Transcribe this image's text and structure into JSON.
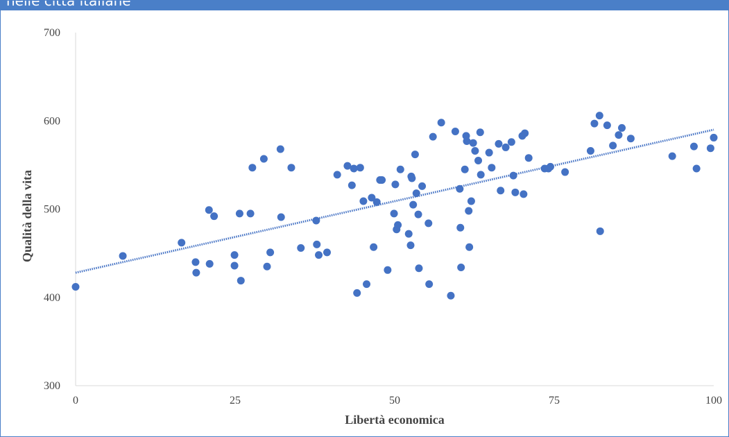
{
  "header": {
    "title": "nelle città italiane"
  },
  "chart_data": {
    "type": "scatter",
    "title": "",
    "xlabel": "Libertà economica",
    "ylabel": "Qualità della vita",
    "xlim": [
      0,
      100
    ],
    "ylim": [
      300,
      700
    ],
    "x_ticks": [
      "0",
      "25",
      "50",
      "75",
      "100"
    ],
    "y_ticks": [
      "300",
      "400",
      "500",
      "600",
      "700"
    ],
    "grid": false,
    "legend": "none",
    "marker_color": "#4472c4",
    "trendline": {
      "style": "dotted",
      "color": "#4472c4",
      "x": [
        0,
        100
      ],
      "y": [
        428,
        590
      ]
    },
    "series": [
      {
        "points": [
          [
            0,
            412
          ],
          [
            7.4,
            447
          ],
          [
            16.6,
            462
          ],
          [
            18.8,
            440
          ],
          [
            18.9,
            428
          ],
          [
            20.9,
            499
          ],
          [
            21,
            438
          ],
          [
            21.7,
            492
          ],
          [
            24.9,
            436
          ],
          [
            24.9,
            448
          ],
          [
            25.7,
            495
          ],
          [
            25.9,
            419
          ],
          [
            27.4,
            495
          ],
          [
            27.7,
            547
          ],
          [
            29.5,
            557
          ],
          [
            30,
            435
          ],
          [
            30.5,
            451
          ],
          [
            32.1,
            568
          ],
          [
            32.2,
            491
          ],
          [
            33.8,
            547
          ],
          [
            35.3,
            456
          ],
          [
            37.7,
            487
          ],
          [
            37.8,
            460
          ],
          [
            38.1,
            448
          ],
          [
            39.4,
            451
          ],
          [
            41,
            539
          ],
          [
            42.6,
            549
          ],
          [
            43.3,
            527
          ],
          [
            43.6,
            546
          ],
          [
            44.1,
            405
          ],
          [
            44.6,
            547
          ],
          [
            45.1,
            509
          ],
          [
            45.6,
            415
          ],
          [
            46.4,
            513
          ],
          [
            46.7,
            457
          ],
          [
            47.2,
            508
          ],
          [
            47.7,
            533
          ],
          [
            48,
            533
          ],
          [
            48.9,
            431
          ],
          [
            49.9,
            495
          ],
          [
            50.1,
            528
          ],
          [
            50.3,
            477
          ],
          [
            50.5,
            482
          ],
          [
            50.9,
            545
          ],
          [
            52.2,
            472
          ],
          [
            52.5,
            459
          ],
          [
            52.6,
            537
          ],
          [
            52.7,
            535
          ],
          [
            52.9,
            505
          ],
          [
            53.2,
            562
          ],
          [
            53.4,
            518
          ],
          [
            53.7,
            494
          ],
          [
            53.8,
            433
          ],
          [
            54.3,
            526
          ],
          [
            55.3,
            484
          ],
          [
            55.4,
            415
          ],
          [
            56,
            582
          ],
          [
            57.3,
            598
          ],
          [
            58.8,
            402
          ],
          [
            59.5,
            588
          ],
          [
            60.2,
            523
          ],
          [
            60.3,
            479
          ],
          [
            60.4,
            434
          ],
          [
            61,
            545
          ],
          [
            61.2,
            583
          ],
          [
            61.3,
            577
          ],
          [
            61.6,
            498
          ],
          [
            61.7,
            457
          ],
          [
            62,
            509
          ],
          [
            62.3,
            575
          ],
          [
            62.6,
            566
          ],
          [
            63.1,
            555
          ],
          [
            63.4,
            587
          ],
          [
            63.5,
            539
          ],
          [
            64.8,
            564
          ],
          [
            65.2,
            547
          ],
          [
            66.3,
            574
          ],
          [
            66.6,
            521
          ],
          [
            67.4,
            570
          ],
          [
            68.3,
            576
          ],
          [
            68.6,
            538
          ],
          [
            68.9,
            519
          ],
          [
            70,
            583
          ],
          [
            70.2,
            517
          ],
          [
            70.4,
            586
          ],
          [
            71,
            558
          ],
          [
            73.5,
            546
          ],
          [
            74.1,
            546
          ],
          [
            74.4,
            548
          ],
          [
            76.7,
            542
          ],
          [
            80.7,
            566
          ],
          [
            81.3,
            597
          ],
          [
            82.1,
            606
          ],
          [
            82.2,
            475
          ],
          [
            83.3,
            595
          ],
          [
            84.2,
            572
          ],
          [
            85.1,
            584
          ],
          [
            85.6,
            592
          ],
          [
            87,
            580
          ],
          [
            93.5,
            560
          ],
          [
            96.9,
            571
          ],
          [
            97.3,
            546
          ],
          [
            99.5,
            569
          ],
          [
            100,
            581
          ]
        ]
      }
    ]
  }
}
